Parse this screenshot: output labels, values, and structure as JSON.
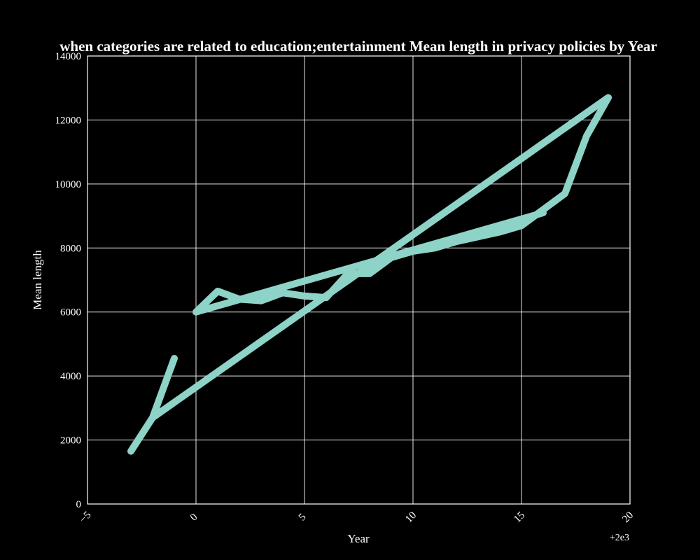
{
  "chart_data": {
    "type": "line",
    "title": "when categories are related to education;entertainment Mean length in privacy policies by Year",
    "xlabel": "Year",
    "ylabel": "Mean length",
    "x_offset_label": "+2e3",
    "xlim": [
      -5,
      20
    ],
    "ylim": [
      0,
      14000
    ],
    "x_ticks": [
      -5,
      0,
      5,
      10,
      15,
      20
    ],
    "x_tick_labels": [
      "−5",
      "0",
      "5",
      "10",
      "15",
      "20"
    ],
    "y_ticks": [
      0,
      2000,
      4000,
      6000,
      8000,
      10000,
      12000,
      14000
    ],
    "y_tick_labels": [
      "0",
      "2000",
      "4000",
      "6000",
      "8000",
      "10000",
      "12000",
      "14000"
    ],
    "grid": true,
    "background": "#000000",
    "series": [
      {
        "color": "#8dd3c7",
        "x": [
          -1,
          -2,
          -3,
          -2,
          19,
          18,
          17,
          15,
          14,
          13,
          12,
          11,
          10,
          9,
          8,
          7,
          6,
          5,
          4,
          3,
          2,
          1,
          0,
          16
        ],
        "y": [
          4550,
          2700,
          1650,
          2700,
          12700,
          11500,
          9700,
          8700,
          8500,
          8350,
          8200,
          8000,
          7900,
          7700,
          7200,
          7200,
          6450,
          6500,
          6600,
          6350,
          6400,
          6650,
          6000,
          9100
        ]
      }
    ]
  }
}
